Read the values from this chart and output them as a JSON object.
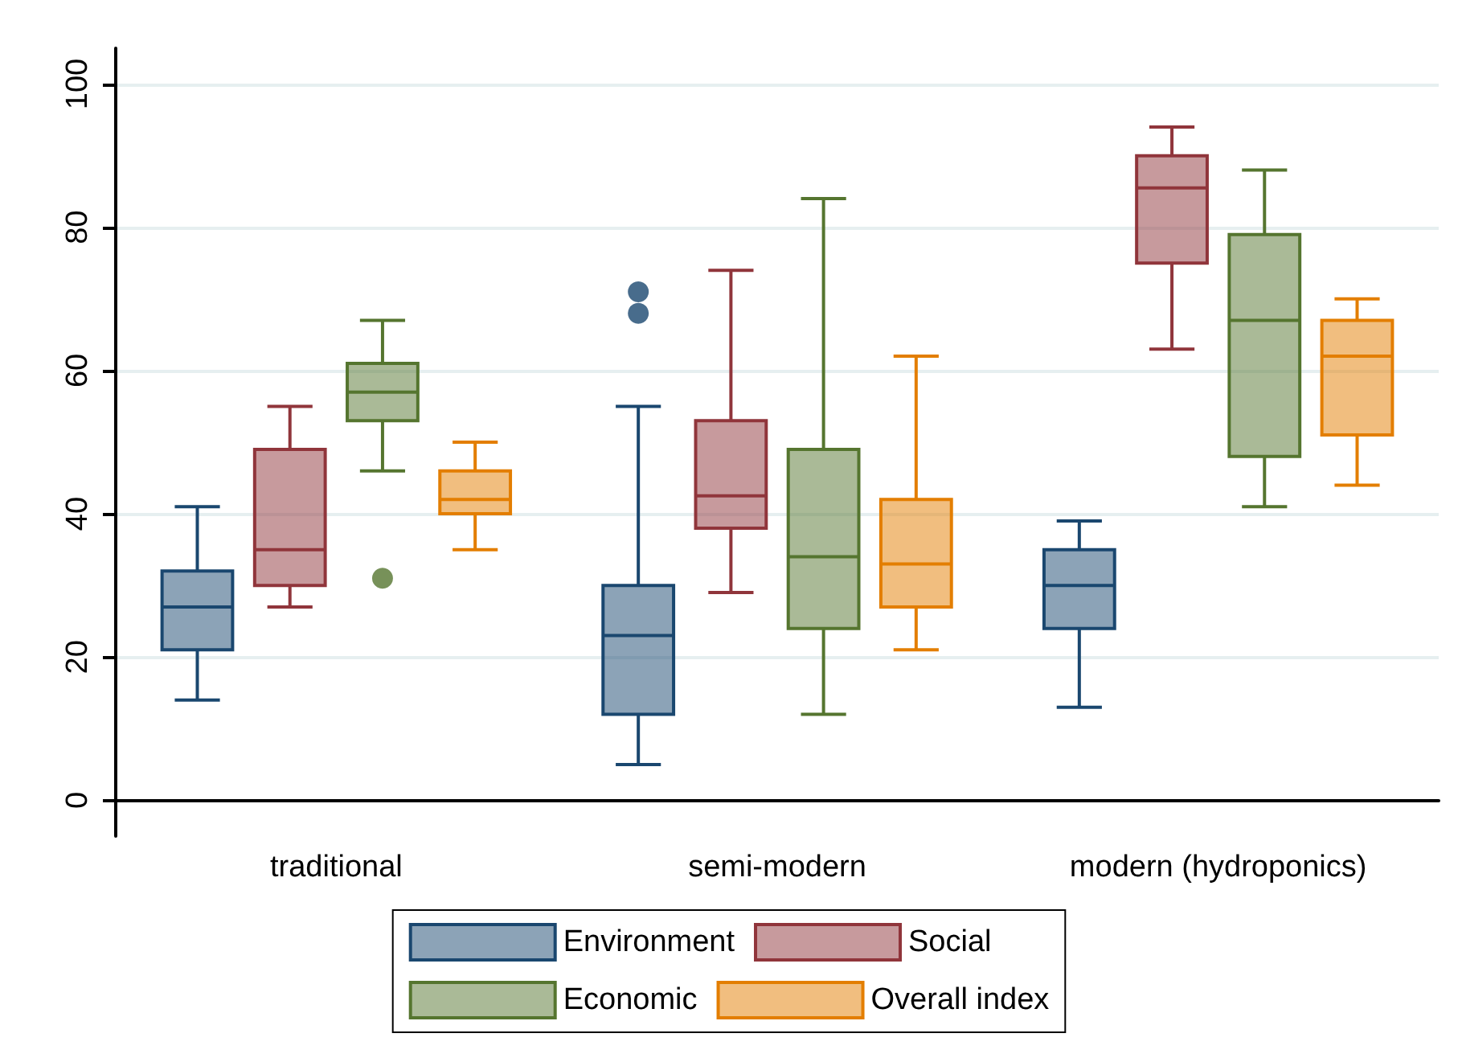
{
  "chart_data": {
    "type": "box",
    "categories": [
      "traditional",
      "semi-modern",
      "modern (hydroponics)"
    ],
    "series": [
      {
        "name": "Environment",
        "color": "#1a476f",
        "boxes": [
          {
            "low": 14,
            "q1": 21,
            "median": 27,
            "q3": 32,
            "high": 41
          },
          {
            "low": 5,
            "q1": 12,
            "median": 23,
            "q3": 30,
            "high": 55,
            "outliers": [
              68,
              71
            ]
          },
          {
            "low": 13,
            "q1": 24,
            "median": 30,
            "q3": 35,
            "high": 39
          }
        ]
      },
      {
        "name": "Social",
        "color": "#90353b",
        "boxes": [
          {
            "low": 27,
            "q1": 30,
            "median": 35,
            "q3": 49,
            "high": 55
          },
          {
            "low": 29,
            "q1": 38,
            "median": 42.5,
            "q3": 53,
            "high": 74
          },
          {
            "low": 63,
            "q1": 75,
            "median": 85.5,
            "q3": 90,
            "high": 94
          }
        ]
      },
      {
        "name": "Economic",
        "color": "#55752f",
        "boxes": [
          {
            "low": 46,
            "q1": 53,
            "median": 57,
            "q3": 61,
            "high": 67,
            "outliers": [
              31
            ]
          },
          {
            "low": 12,
            "q1": 24,
            "median": 34,
            "q3": 49,
            "high": 84
          },
          {
            "low": 41,
            "q1": 48,
            "median": 67,
            "q3": 79,
            "high": 88
          }
        ]
      },
      {
        "name": "Overall index",
        "color": "#e37e00",
        "boxes": [
          {
            "low": 35,
            "q1": 40,
            "median": 42,
            "q3": 46,
            "high": 50
          },
          {
            "low": 21,
            "q1": 27,
            "median": 33,
            "q3": 42,
            "high": 62
          },
          {
            "low": 44,
            "q1": 51,
            "median": 62,
            "q3": 67,
            "high": 70
          }
        ]
      }
    ],
    "ylim": [
      -5,
      105
    ],
    "yticks": [
      0,
      20,
      40,
      60,
      80,
      100
    ],
    "grid": "y",
    "legend": "bottom"
  }
}
